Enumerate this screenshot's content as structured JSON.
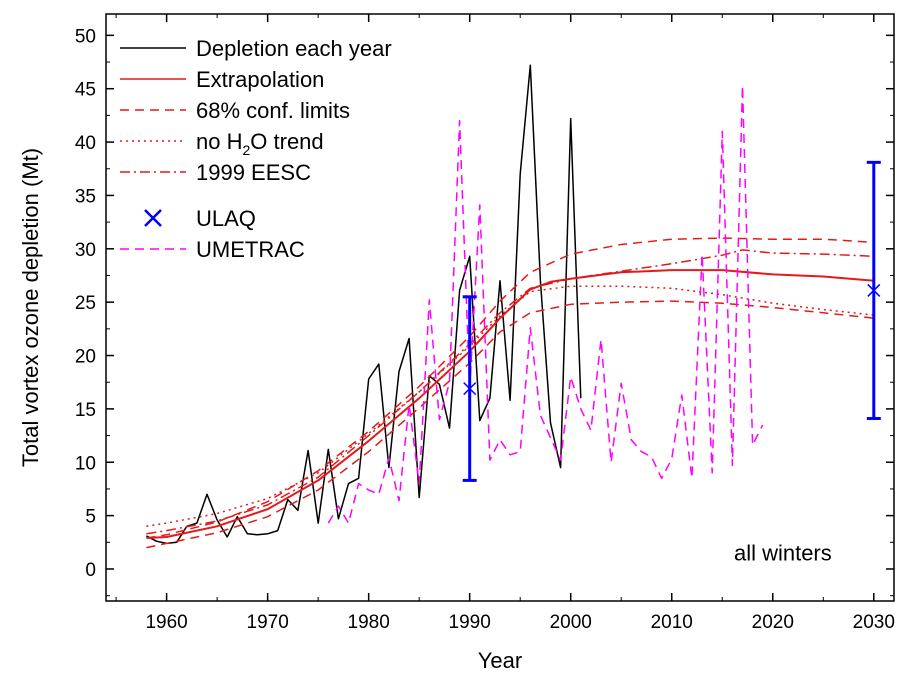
{
  "chart_data": {
    "type": "line",
    "xlabel": "Year",
    "ylabel": "Total vortex ozone depletion (Mt)",
    "xlim": [
      1954,
      2032
    ],
    "ylim": [
      -3,
      52
    ],
    "xticks": [
      1960,
      1970,
      1980,
      1990,
      2000,
      2010,
      2020,
      2030
    ],
    "yticks": [
      0,
      5,
      10,
      15,
      20,
      25,
      30,
      35,
      40,
      45,
      50
    ],
    "annotation": "all winters",
    "legend_position": "top-left",
    "legend": [
      {
        "label": "Depletion each year",
        "style": "solid",
        "color": "#000000"
      },
      {
        "label": "Extrapolation",
        "style": "solid",
        "color": "#e41a1a"
      },
      {
        "label": "68% conf. limits",
        "style": "dashed",
        "color": "#e41a1a"
      },
      {
        "label": "no H₂O trend",
        "style": "dotted",
        "color": "#e41a1a"
      },
      {
        "label": "1999 EESC",
        "style": "dashdot",
        "color": "#e41a1a"
      },
      {
        "label": "ULAQ",
        "style": "marker-x",
        "color": "#0000ff"
      },
      {
        "label": "UMETRAC",
        "style": "dashed",
        "color": "#ff00ff"
      }
    ],
    "series": [
      {
        "name": "Depletion each year",
        "color": "#000000",
        "style": "solid",
        "x": [
          1958,
          1959,
          1960,
          1961,
          1962,
          1963,
          1964,
          1965,
          1966,
          1967,
          1968,
          1969,
          1970,
          1971,
          1972,
          1973,
          1974,
          1975,
          1976,
          1977,
          1978,
          1979,
          1980,
          1981,
          1982,
          1983,
          1984,
          1985,
          1986,
          1987,
          1988,
          1989,
          1990,
          1991,
          1992,
          1993,
          1994,
          1995,
          1996,
          1997,
          1998,
          1999,
          2000,
          2001
        ],
        "y": [
          3.1,
          2.6,
          2.4,
          2.5,
          4.0,
          4.3,
          7.0,
          4.6,
          3.0,
          4.9,
          3.3,
          3.2,
          3.3,
          3.6,
          6.5,
          5.5,
          11.1,
          4.3,
          11.2,
          4.7,
          8.0,
          8.5,
          17.8,
          19.2,
          9.5,
          18.5,
          21.6,
          6.7,
          18.1,
          17.3,
          13.2,
          26.1,
          29.3,
          13.9,
          16.0,
          27.0,
          15.8,
          37.0,
          47.2,
          27.0,
          13.7,
          9.5,
          42.2,
          16.0
        ]
      },
      {
        "name": "Extrapolation",
        "color": "#e41a1a",
        "style": "solid",
        "x": [
          1958,
          1960,
          1965,
          1970,
          1975,
          1980,
          1985,
          1990,
          1993,
          1996,
          1998,
          2000,
          2005,
          2010,
          2015,
          2020,
          2025,
          2030
        ],
        "y": [
          2.9,
          3.0,
          4.0,
          5.6,
          8.3,
          12.0,
          16.0,
          20.4,
          23.5,
          26.2,
          26.9,
          27.2,
          27.8,
          28.0,
          28.0,
          27.6,
          27.4,
          27.0
        ]
      },
      {
        "name": "68% conf. limits (upper)",
        "color": "#e41a1a",
        "style": "dashed",
        "x": [
          1958,
          1960,
          1965,
          1970,
          1975,
          1980,
          1985,
          1990,
          1993,
          1996,
          2000,
          2005,
          2010,
          2015,
          2020,
          2025,
          2030
        ],
        "y": [
          2.9,
          3.2,
          4.4,
          6.3,
          9.2,
          12.9,
          17.1,
          21.8,
          25.1,
          27.8,
          29.5,
          30.4,
          30.9,
          31.0,
          30.9,
          30.9,
          30.6
        ]
      },
      {
        "name": "68% conf. limits (lower)",
        "color": "#e41a1a",
        "style": "dashed",
        "x": [
          1958,
          1960,
          1965,
          1970,
          1975,
          1980,
          1985,
          1990,
          1993,
          1996,
          2000,
          2005,
          2010,
          2015,
          2020,
          2025,
          2030
        ],
        "y": [
          2.0,
          2.4,
          3.4,
          4.9,
          7.4,
          11.0,
          15.1,
          19.3,
          22.2,
          24.0,
          24.8,
          25.0,
          25.1,
          24.9,
          24.5,
          24.0,
          23.5
        ]
      },
      {
        "name": "no H2O trend",
        "color": "#e41a1a",
        "style": "dotted",
        "x": [
          1958,
          1960,
          1965,
          1970,
          1975,
          1980,
          1985,
          1990,
          1993,
          1996,
          2000,
          2005,
          2010,
          2015,
          2020,
          2025,
          2030
        ],
        "y": [
          4.0,
          4.3,
          5.2,
          6.6,
          9.0,
          12.7,
          16.6,
          20.9,
          23.7,
          26.0,
          26.5,
          26.5,
          26.3,
          25.7,
          24.9,
          24.3,
          23.8
        ]
      },
      {
        "name": "1999 EESC",
        "color": "#e41a1a",
        "style": "dashdot",
        "x": [
          1958,
          1960,
          1965,
          1970,
          1975,
          1980,
          1985,
          1990,
          1993,
          1996,
          2000,
          2005,
          2010,
          2015,
          2017,
          2020,
          2025,
          2030
        ],
        "y": [
          3.3,
          3.6,
          4.5,
          6.0,
          8.6,
          12.5,
          16.6,
          21.1,
          24.0,
          26.3,
          27.2,
          27.9,
          28.6,
          29.4,
          29.9,
          29.6,
          29.5,
          29.3
        ]
      },
      {
        "name": "UMETRAC",
        "color": "#ff00ff",
        "style": "dashed",
        "x": [
          1976,
          1977,
          1978,
          1979,
          1980,
          1981,
          1982,
          1983,
          1984,
          1985,
          1986,
          1987,
          1988,
          1989,
          1990,
          1991,
          1992,
          1993,
          1994,
          1995,
          1996,
          1997,
          1998,
          1999,
          2000,
          2001,
          2002,
          2003,
          2004,
          2005,
          2006,
          2007,
          2008,
          2009,
          2010,
          2011,
          2012,
          2013,
          2014,
          2015,
          2016,
          2017,
          2018,
          2019
        ],
        "y": [
          4.3,
          5.9,
          4.3,
          8.0,
          7.4,
          7.0,
          10.4,
          6.4,
          15.4,
          8.0,
          25.2,
          14.0,
          17.5,
          42.0,
          17.0,
          34.1,
          10.2,
          12.1,
          10.7,
          11.0,
          22.6,
          14.4,
          12.3,
          10.2,
          18.0,
          15.0,
          13.0,
          21.5,
          10.0,
          17.4,
          12.1,
          11.0,
          10.5,
          8.5,
          10.3,
          16.3,
          8.5,
          29.5,
          9.0,
          41.0,
          9.7,
          45.3,
          11.6,
          13.5
        ]
      },
      {
        "name": "ULAQ",
        "color": "#0000ff",
        "style": "marker-x",
        "x": [
          1990,
          2030
        ],
        "y": [
          16.9,
          26.1
        ],
        "err_low": [
          8.3,
          14.1
        ],
        "err_high": [
          25.5,
          38.1
        ]
      }
    ]
  }
}
